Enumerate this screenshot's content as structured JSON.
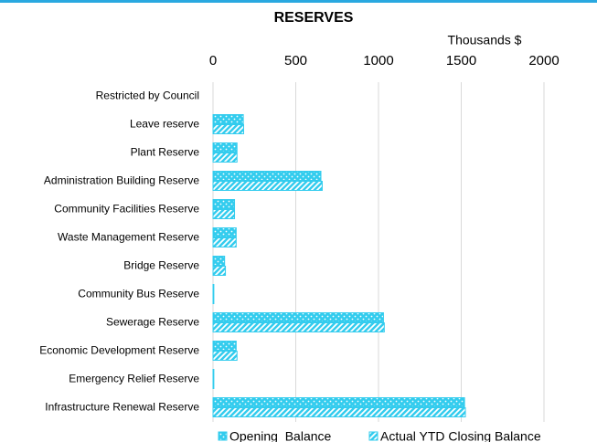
{
  "chart_data": {
    "type": "hbar",
    "title": "RESERVES",
    "x_axis_label": "Thousands $",
    "categories": [
      "Restricted by Council",
      "Leave reserve",
      "Plant Reserve",
      "Administration Building Reserve",
      "Community Facilities Reserve",
      "Waste Management Reserve",
      "Bridge Reserve",
      "Community Bus Reserve",
      "Sewerage Reserve",
      "Economic Development Reserve",
      "Emergency Relief Reserve",
      "Infrastructure Renewal Reserve"
    ],
    "series": [
      {
        "name": "Opening  Balance",
        "color": "#33ccee",
        "pattern": "dots",
        "values": [
          0,
          183,
          145,
          652,
          130,
          140,
          70,
          5,
          1030,
          140,
          5,
          1520
        ]
      },
      {
        "name": "Actual YTD Closing Balance",
        "color": "#33ccee",
        "pattern": "diagonal",
        "values": [
          0,
          185,
          145,
          660,
          130,
          140,
          75,
          5,
          1035,
          145,
          5,
          1525
        ]
      }
    ],
    "xlim": [
      0,
      2000
    ],
    "xticks": [
      0,
      500,
      1000,
      1500,
      2000
    ],
    "grid": true
  }
}
